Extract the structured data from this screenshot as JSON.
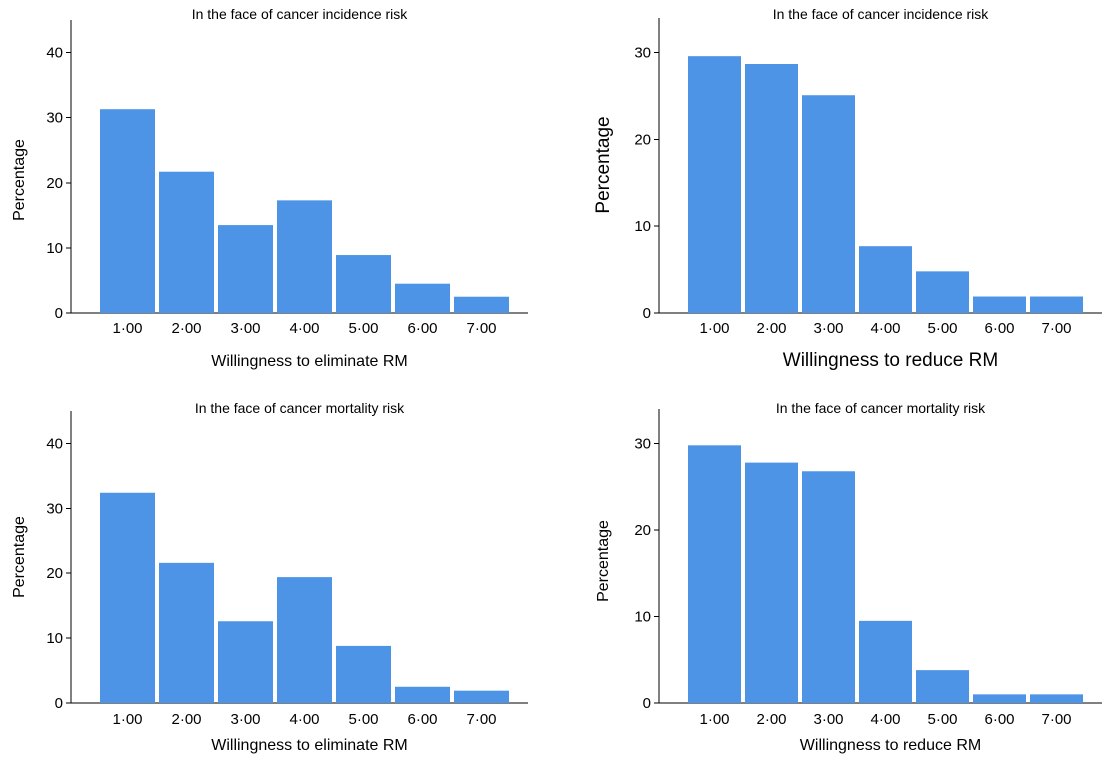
{
  "chart_data": [
    {
      "type": "bar",
      "title": "In the face of cancer incidence risk",
      "xlabel": "Willingness to eliminate RM",
      "ylabel": "Percentage",
      "categories": [
        "1·00",
        "2·00",
        "3·00",
        "4·00",
        "5·00",
        "6·00",
        "7·00"
      ],
      "values": [
        31.3,
        21.7,
        13.5,
        17.3,
        8.9,
        4.5,
        2.5
      ],
      "ylim": [
        0,
        45
      ],
      "yticks": [
        "0",
        "10",
        "20",
        "30",
        "40"
      ],
      "grid": false,
      "color": "#4d94e6"
    },
    {
      "type": "bar",
      "title": "In the face of cancer incidence risk",
      "xlabel": "Willingness to reduce RM",
      "ylabel": "Percentage",
      "categories": [
        "1·00",
        "2·00",
        "3·00",
        "4·00",
        "5·00",
        "6·00",
        "7·00"
      ],
      "values": [
        29.6,
        28.7,
        25.1,
        7.7,
        4.8,
        1.9,
        1.9
      ],
      "ylim": [
        0,
        34
      ],
      "yticks": [
        "0",
        "10",
        "20",
        "30"
      ],
      "grid": false,
      "color": "#4d94e6"
    },
    {
      "type": "bar",
      "title": "In the face of cancer mortality risk",
      "xlabel": "Willingness to eliminate RM",
      "ylabel": "Percentage",
      "categories": [
        "1·00",
        "2·00",
        "3·00",
        "4·00",
        "5·00",
        "6·00",
        "7·00"
      ],
      "values": [
        32.4,
        21.6,
        12.6,
        19.4,
        8.8,
        2.5,
        1.9
      ],
      "ylim": [
        0,
        45
      ],
      "yticks": [
        "0",
        "10",
        "20",
        "30",
        "40"
      ],
      "grid": false,
      "color": "#4d94e6"
    },
    {
      "type": "bar",
      "title": "In the face of cancer mortality risk",
      "xlabel": "Willingness to reduce RM",
      "ylabel": "Percentage",
      "categories": [
        "1·00",
        "2·00",
        "3·00",
        "4·00",
        "5·00",
        "6·00",
        "7·00"
      ],
      "values": [
        29.8,
        27.8,
        26.8,
        9.5,
        3.8,
        1.0,
        1.0
      ],
      "ylim": [
        0,
        34
      ],
      "yticks": [
        "0",
        "10",
        "20",
        "30"
      ],
      "grid": false,
      "color": "#4d94e6"
    }
  ]
}
